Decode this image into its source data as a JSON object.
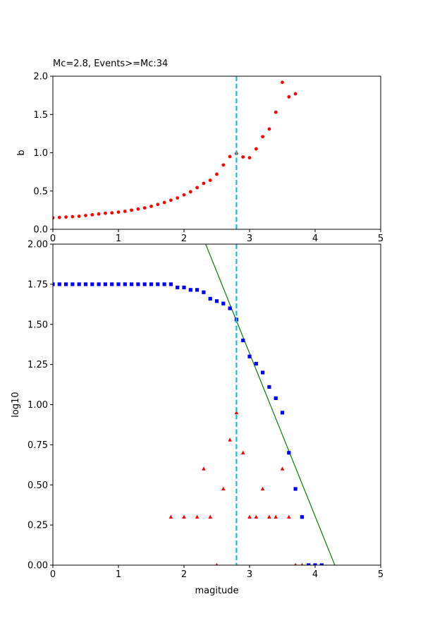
{
  "chart_data": [
    {
      "type": "scatter",
      "title": "Mc=2.8, Events>=Mc:34",
      "xlabel": "",
      "ylabel": "b",
      "xlim": [
        0,
        5
      ],
      "ylim": [
        0,
        2.0
      ],
      "xticks": [
        "0",
        "1",
        "2",
        "3",
        "4",
        "5"
      ],
      "yticks": [
        "0.0",
        "0.5",
        "1.0",
        "1.5",
        "2.0"
      ],
      "grid": false,
      "vline": {
        "x": 2.8,
        "color": "#17becf",
        "style": "dashed"
      },
      "series": [
        {
          "marker": "circle",
          "color": "#ff0000",
          "x": [
            0.0,
            0.1,
            0.2,
            0.3,
            0.4,
            0.5,
            0.6,
            0.7,
            0.8,
            0.9,
            1.0,
            1.1,
            1.2,
            1.3,
            1.4,
            1.5,
            1.6,
            1.7,
            1.8,
            1.9,
            2.0,
            2.1,
            2.2,
            2.3,
            2.4,
            2.5,
            2.6,
            2.7,
            2.8,
            2.9,
            3.0,
            3.1,
            3.2,
            3.3,
            3.4,
            3.5,
            3.6,
            3.7
          ],
          "y": [
            0.15,
            0.155,
            0.16,
            0.165,
            0.17,
            0.18,
            0.19,
            0.2,
            0.21,
            0.215,
            0.225,
            0.235,
            0.25,
            0.265,
            0.28,
            0.3,
            0.325,
            0.35,
            0.38,
            0.41,
            0.45,
            0.49,
            0.545,
            0.6,
            0.64,
            0.72,
            0.84,
            0.95,
            0.99,
            0.945,
            0.935,
            1.05,
            1.21,
            1.31,
            1.53,
            1.92,
            1.73,
            1.77
          ]
        }
      ]
    },
    {
      "type": "scatter",
      "title": "",
      "xlabel": "magitude",
      "ylabel": "log10",
      "xlim": [
        0,
        5
      ],
      "ylim": [
        0,
        2.0
      ],
      "xticks": [
        "0",
        "1",
        "2",
        "3",
        "4",
        "5"
      ],
      "yticks": [
        "0.00",
        "0.25",
        "0.50",
        "0.75",
        "1.00",
        "1.25",
        "1.50",
        "1.75",
        "2.00"
      ],
      "grid": false,
      "vline": {
        "x": 2.8,
        "color": "#17becf",
        "style": "dashed"
      },
      "fit_line": {
        "color": "#008000",
        "points": [
          [
            2.33,
            2.0
          ],
          [
            4.3,
            0.0
          ]
        ]
      },
      "series": [
        {
          "marker": "square",
          "color": "#0000ff",
          "x": [
            0.0,
            0.1,
            0.2,
            0.3,
            0.4,
            0.5,
            0.6,
            0.7,
            0.8,
            0.9,
            1.0,
            1.1,
            1.2,
            1.3,
            1.4,
            1.5,
            1.6,
            1.7,
            1.8,
            1.9,
            2.0,
            2.1,
            2.2,
            2.3,
            2.4,
            2.5,
            2.6,
            2.7,
            2.8,
            2.9,
            3.0,
            3.1,
            3.2,
            3.3,
            3.4,
            3.5,
            3.6,
            3.7,
            3.8,
            3.9,
            4.0,
            4.1
          ],
          "y": [
            1.75,
            1.75,
            1.75,
            1.75,
            1.75,
            1.75,
            1.75,
            1.75,
            1.75,
            1.75,
            1.75,
            1.75,
            1.75,
            1.75,
            1.75,
            1.75,
            1.75,
            1.75,
            1.75,
            1.73,
            1.73,
            1.715,
            1.715,
            1.7,
            1.66,
            1.645,
            1.63,
            1.6,
            1.53,
            1.4,
            1.3,
            1.255,
            1.2,
            1.11,
            1.04,
            0.95,
            0.7,
            0.475,
            0.3,
            0.0,
            0.0,
            0.0
          ]
        },
        {
          "marker": "triangle",
          "color": "#ff0000",
          "x": [
            1.8,
            2.0,
            2.2,
            2.3,
            2.4,
            2.5,
            2.6,
            2.7,
            2.8,
            2.9,
            3.0,
            3.1,
            3.2,
            3.3,
            3.4,
            3.5,
            3.6,
            3.7,
            3.8
          ],
          "y": [
            0.3,
            0.3,
            0.3,
            0.6,
            0.3,
            0.0,
            0.475,
            0.78,
            0.95,
            0.7,
            0.3,
            0.3,
            0.475,
            0.3,
            0.3,
            0.6,
            0.3,
            0.0,
            0.0
          ]
        }
      ]
    }
  ]
}
